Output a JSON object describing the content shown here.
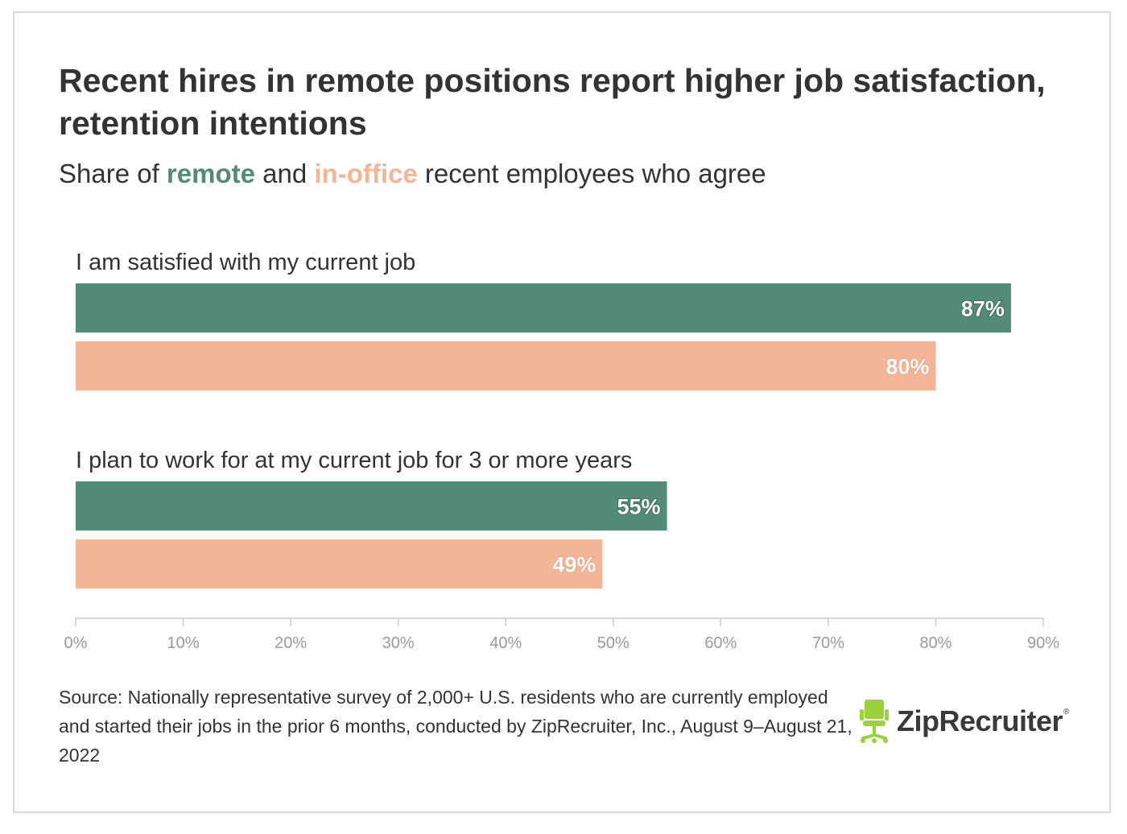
{
  "title": "Recent hires in remote positions report higher job satisfaction, retention intentions",
  "subtitle": {
    "prefix": "Share of ",
    "remote_word": "remote",
    "middle": " and ",
    "office_word": "in-office",
    "suffix": " recent employees who agree"
  },
  "colors": {
    "remote": "#548a78",
    "in_office": "#f2b598",
    "axis": "#cccccc",
    "tick_text": "#999999"
  },
  "chart_data": {
    "type": "bar",
    "orientation": "horizontal",
    "categories": [
      "I am satisfied with my current job",
      "I plan to work for at my current job for 3 or more years"
    ],
    "series": [
      {
        "name": "remote",
        "values": [
          87,
          55
        ],
        "labels": [
          "87%",
          "55%"
        ]
      },
      {
        "name": "in-office",
        "values": [
          80,
          49
        ],
        "labels": [
          "80%",
          "49%"
        ]
      }
    ],
    "xlim": [
      0,
      90
    ],
    "xticks": [
      0,
      10,
      20,
      30,
      40,
      50,
      60,
      70,
      80,
      90
    ],
    "xtick_labels": [
      "0%",
      "10%",
      "20%",
      "30%",
      "40%",
      "50%",
      "60%",
      "70%",
      "80%",
      "90%"
    ],
    "xlabel": "",
    "ylabel": ""
  },
  "source": "Source: Nationally representative survey of 2,000+ U.S. residents who are currently employed and started their jobs in the prior 6 months, conducted by ZipRecruiter, Inc., August 9–August 21, 2022",
  "logo": {
    "icon": "office-chair-icon",
    "text": "ZipRecruiter",
    "reg": "®"
  }
}
